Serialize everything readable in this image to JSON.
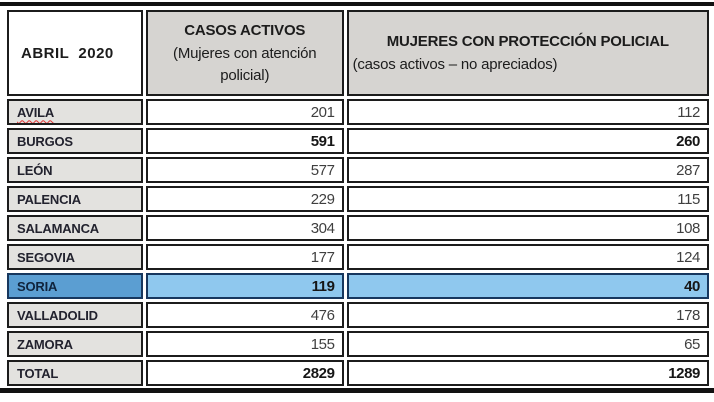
{
  "table": {
    "corner_header": "ABRIL  2020",
    "columns": {
      "casos": {
        "line1": "CASOS ACTIVOS",
        "line2": "(Mujeres con atención policial)"
      },
      "proteccion": {
        "line1": "MUJERES CON PROTECCIÓN POLICIAL",
        "line2": "(casos activos – no apreciados)"
      }
    },
    "rows": [
      {
        "province": "AVILA",
        "casos_activos": 201,
        "proteccion_policial": 112,
        "spellcheck_underline": true
      },
      {
        "province": "BURGOS",
        "casos_activos": 591,
        "proteccion_policial": 260,
        "bold_values": true
      },
      {
        "province": "LEÓN",
        "casos_activos": 577,
        "proteccion_policial": 287
      },
      {
        "province": "PALENCIA",
        "casos_activos": 229,
        "proteccion_policial": 115
      },
      {
        "province": "SALAMANCA",
        "casos_activos": 304,
        "proteccion_policial": 108
      },
      {
        "province": "SEGOVIA",
        "casos_activos": 177,
        "proteccion_policial": 124
      },
      {
        "province": "SORIA",
        "casos_activos": 119,
        "proteccion_policial": 40,
        "highlighted": true,
        "bold_values": true
      },
      {
        "province": "VALLADOLID",
        "casos_activos": 476,
        "proteccion_policial": 178
      },
      {
        "province": "ZAMORA",
        "casos_activos": 155,
        "proteccion_policial": 65
      }
    ],
    "total": {
      "label": "TOTAL",
      "casos_activos": 2829,
      "proteccion_policial": 1289
    }
  },
  "colors": {
    "header_bg": "#d6d4d1",
    "label_bg": "#e3e2df",
    "highlight_label_bg": "#5b9ed2",
    "highlight_value_bg": "#8fc8ee",
    "highlight_border": "#17375e",
    "spellcheck_red": "#e03131"
  }
}
